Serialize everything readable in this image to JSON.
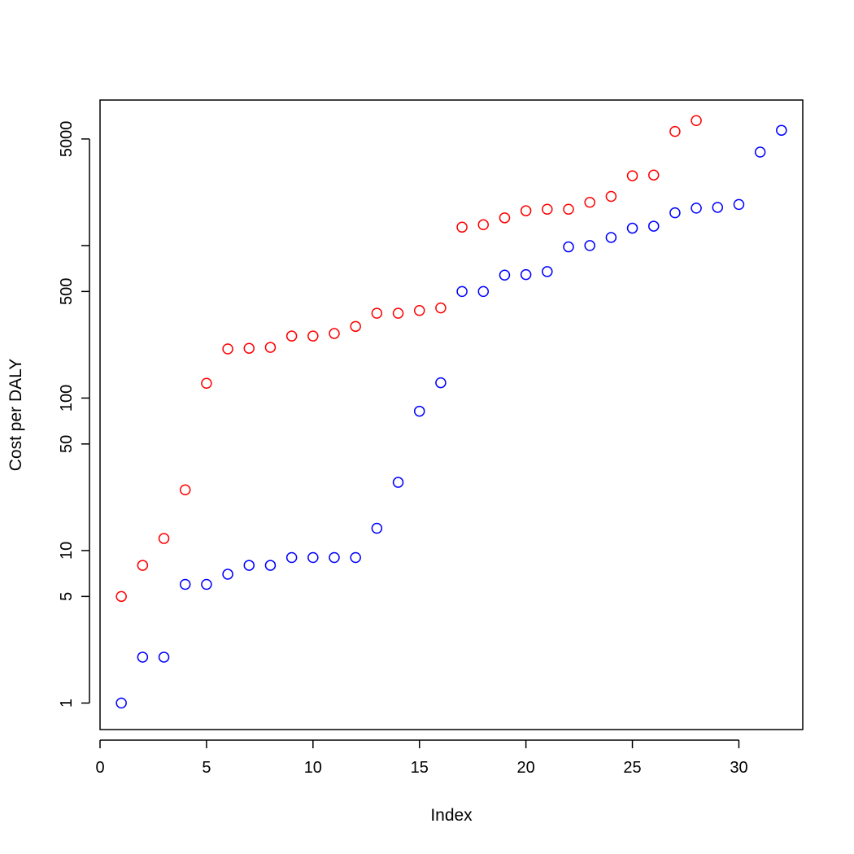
{
  "chart_data": {
    "type": "scatter",
    "xlabel": "Index",
    "ylabel": "Cost per DALY",
    "xlim": [
      0,
      33
    ],
    "ylim": [
      0.67,
      9000
    ],
    "y_scale": "log",
    "x_ticks": [
      0,
      5,
      10,
      15,
      20,
      25,
      30
    ],
    "y_ticks": [
      1,
      5,
      10,
      50,
      100,
      500,
      1000,
      5000
    ],
    "y_tick_labels": [
      "1",
      "5",
      "10",
      "50",
      "100",
      "500",
      "",
      "5000"
    ],
    "grid": false,
    "legend": "none",
    "marker": "open-circle",
    "series": [
      {
        "color": "#ff0000",
        "x": [
          1,
          2,
          3,
          4,
          5,
          6,
          7,
          8,
          9,
          10,
          11,
          12,
          13,
          14,
          15,
          16,
          17,
          18,
          19,
          20,
          21,
          22,
          23,
          24,
          25,
          26,
          27,
          28
        ],
        "y": [
          5,
          8,
          12,
          25,
          125,
          210,
          212,
          215,
          255,
          255,
          265,
          295,
          360,
          360,
          375,
          390,
          1320,
          1370,
          1520,
          1690,
          1730,
          1730,
          1920,
          2100,
          2870,
          2900,
          5600,
          6600
        ]
      },
      {
        "color": "#0000ff",
        "x": [
          1,
          2,
          3,
          4,
          5,
          6,
          7,
          8,
          9,
          10,
          11,
          12,
          13,
          14,
          15,
          16,
          17,
          18,
          19,
          20,
          21,
          22,
          23,
          24,
          25,
          26,
          27,
          28,
          29,
          30,
          31,
          32
        ],
        "y": [
          1,
          2,
          2,
          6,
          6,
          7,
          8,
          8,
          9,
          9,
          9,
          9,
          14,
          28,
          82,
          126,
          500,
          500,
          640,
          645,
          675,
          980,
          1000,
          1130,
          1300,
          1340,
          1640,
          1760,
          1780,
          1860,
          4100,
          5700
        ]
      }
    ]
  }
}
